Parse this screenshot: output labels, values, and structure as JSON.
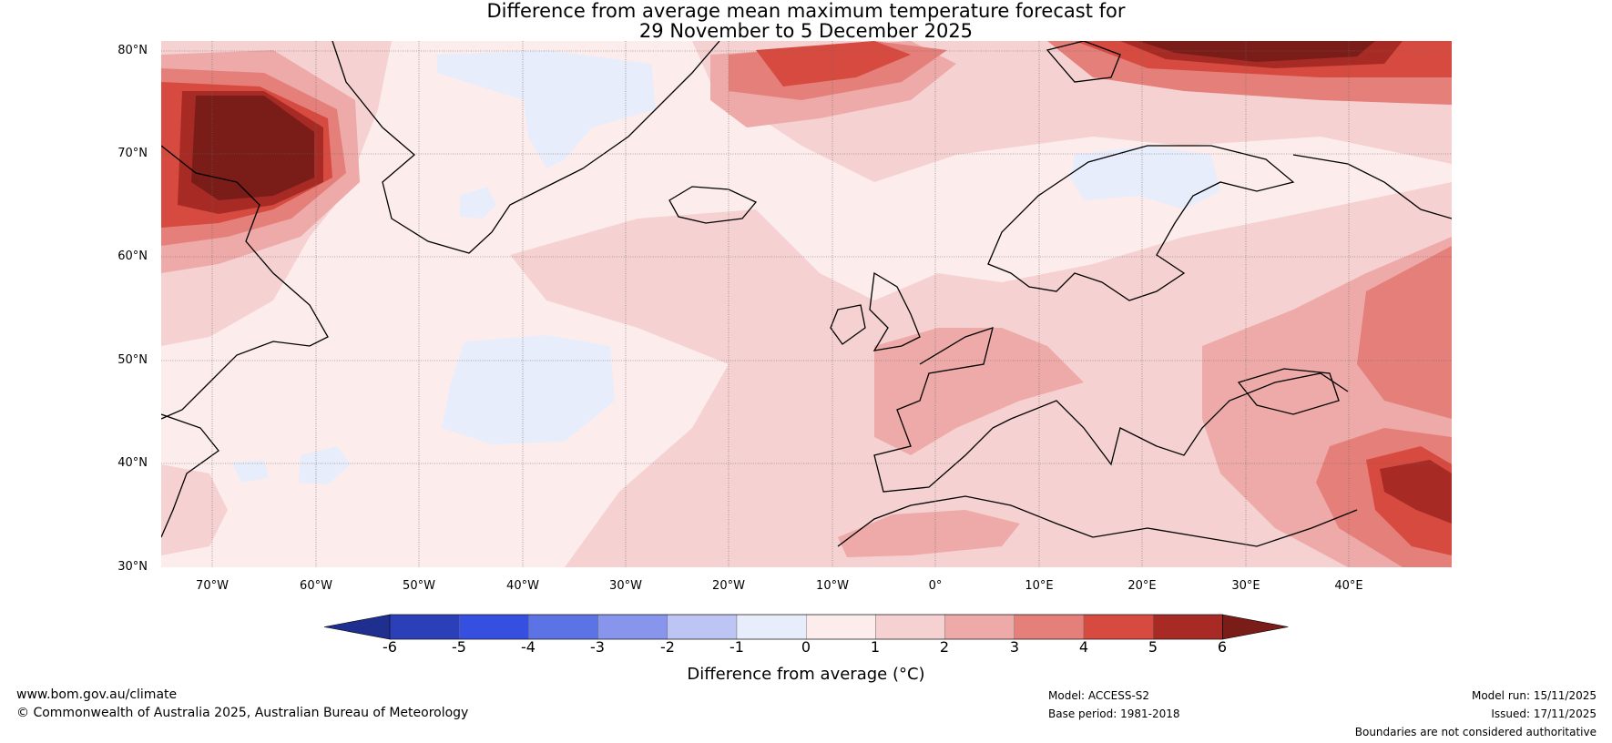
{
  "title": {
    "line1": "Difference from average mean maximum temperature forecast for",
    "line2": "29 November to 5 December 2025"
  },
  "map": {
    "lat_ticks": [
      "80°N",
      "70°N",
      "60°N",
      "50°N",
      "40°N",
      "30°N"
    ],
    "lon_ticks": [
      "70°W",
      "60°W",
      "50°W",
      "40°W",
      "30°W",
      "20°W",
      "10°W",
      "0°",
      "10°E",
      "20°E",
      "30°E",
      "40°E"
    ],
    "lat_range": [
      30,
      80
    ],
    "lon_range": [
      -75,
      50
    ]
  },
  "colorbar": {
    "ticks": [
      "-6",
      "-5",
      "-4",
      "-3",
      "-2",
      "-1",
      "0",
      "1",
      "2",
      "3",
      "4",
      "5",
      "6"
    ],
    "label": "Difference from average (°C)",
    "colors": [
      "#1e2f8f",
      "#2a3fb8",
      "#3550e0",
      "#5c73e6",
      "#8796ec",
      "#bcc5f4",
      "#e8edfb",
      "#fdecec",
      "#f5d2d1",
      "#edaaa8",
      "#e57f7a",
      "#d64a40",
      "#a82a24",
      "#7a1d18"
    ]
  },
  "footer": {
    "website": "www.bom.gov.au/climate",
    "copyright": "© Commonwealth of Australia 2025, Australian Bureau of Meteorology",
    "model": "Model: ACCESS-S2",
    "base_period": "Base period: 1981-2018",
    "model_run": "Model run: 15/11/2025",
    "issued": "Issued: 17/11/2025",
    "disclaimer": "Boundaries are not considered authoritative"
  }
}
